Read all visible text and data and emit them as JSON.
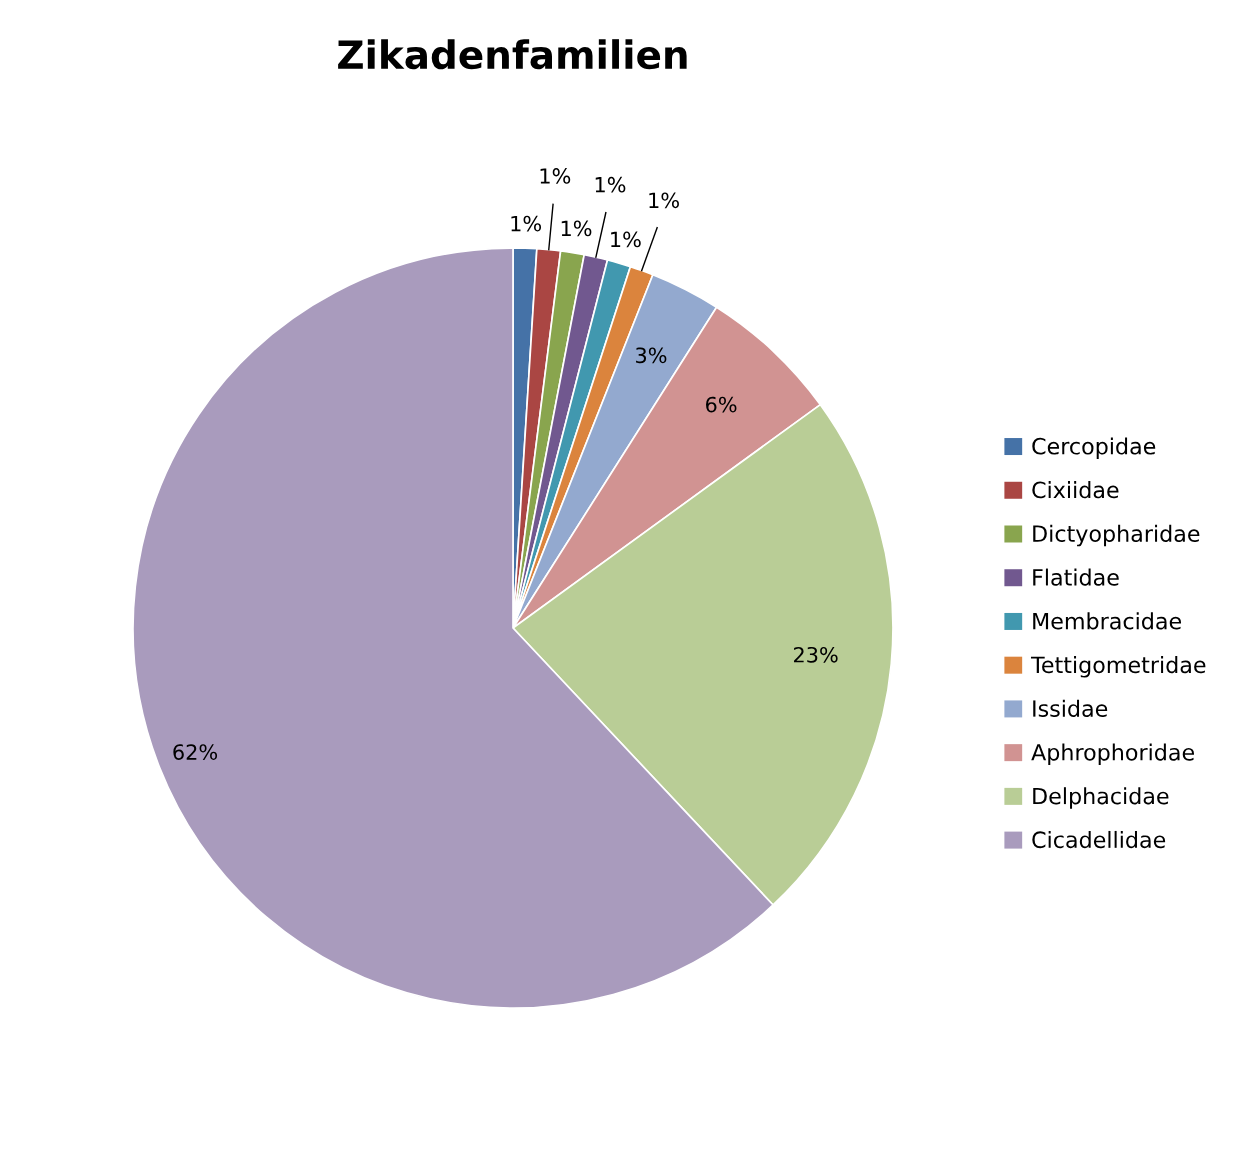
{
  "chart_data": {
    "type": "pie",
    "title": "Zikadenfamilien",
    "categories": [
      "Cercopidae",
      "Cixiidae",
      "Dictyopharidae",
      "Flatidae",
      "Membracidae",
      "Tettigometridae",
      "Issidae",
      "Aphrophoridae",
      "Delphacidae",
      "Cicadellidae"
    ],
    "values": [
      1,
      1,
      1,
      1,
      1,
      1,
      3,
      6,
      23,
      62
    ],
    "value_labels": [
      "1%",
      "1%",
      "1%",
      "1%",
      "1%",
      "1%",
      "3%",
      "6%",
      "23%",
      "62%"
    ],
    "colors": [
      "#4572a7",
      "#aa4643",
      "#89a54e",
      "#71588f",
      "#4198af",
      "#db843d",
      "#93a9cf",
      "#d19392",
      "#b9cd96",
      "#a99bbd"
    ],
    "legend": "right"
  }
}
